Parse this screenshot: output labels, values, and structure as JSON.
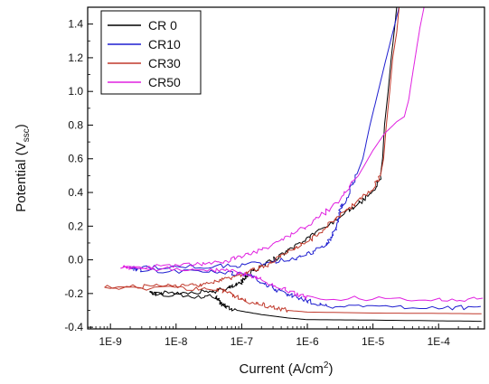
{
  "chart_data": {
    "type": "line",
    "xlabel": "Current (A/cm",
    "xlabel_sup": "2",
    "xlabel_suffix": ")",
    "ylabel": "Potential (V",
    "ylabel_sub": "ssc",
    "ylabel_suffix": ")",
    "x_scale": "log",
    "xlim": [
      4.5e-10,
      0.0005
    ],
    "ylim": [
      -0.41,
      1.5
    ],
    "x_ticks": [
      {
        "value": 1e-09,
        "label": "1E-9"
      },
      {
        "value": 1e-08,
        "label": "1E-8"
      },
      {
        "value": 1e-07,
        "label": "1E-7"
      },
      {
        "value": 1e-06,
        "label": "1E-6"
      },
      {
        "value": 1e-05,
        "label": "1E-5"
      },
      {
        "value": 0.0001,
        "label": "1E-4"
      }
    ],
    "y_ticks": [
      {
        "value": 1.4,
        "label": "1.4"
      },
      {
        "value": 1.2,
        "label": "1.2"
      },
      {
        "value": 1.0,
        "label": "1.0"
      },
      {
        "value": 0.8,
        "label": "0.8"
      },
      {
        "value": 0.6,
        "label": "0.6"
      },
      {
        "value": 0.4,
        "label": "0.4"
      },
      {
        "value": 0.2,
        "label": "0.2"
      },
      {
        "value": 0.0,
        "label": "0.0"
      },
      {
        "value": -0.2,
        "label": "-0.2"
      },
      {
        "value": -0.4,
        "label": "-0.4"
      }
    ],
    "legend_position": "top-left",
    "grid": false,
    "series": [
      {
        "name": "CR 0",
        "color": "#000000",
        "points": [
          [
            0.00045,
            -0.365
          ],
          [
            0.0001,
            -0.362
          ],
          [
            1e-05,
            -0.358
          ],
          [
            1e-06,
            -0.355
          ],
          [
            5e-07,
            -0.345
          ],
          [
            2e-07,
            -0.325
          ],
          [
            1e-07,
            -0.305
          ],
          [
            6e-08,
            -0.285
          ],
          [
            5e-08,
            -0.26
          ],
          [
            4.5e-08,
            -0.24
          ],
          [
            4e-08,
            -0.22
          ],
          [
            2e-08,
            -0.215
          ],
          [
            5e-09,
            -0.205
          ],
          [
            4e-09,
            -0.2
          ],
          [
            8e-09,
            -0.195
          ],
          [
            2e-08,
            -0.19
          ],
          [
            4e-08,
            -0.185
          ],
          [
            6e-08,
            -0.17
          ],
          [
            8e-08,
            -0.155
          ],
          [
            1e-07,
            -0.13
          ],
          [
            1.1e-07,
            -0.11
          ],
          [
            1.3e-07,
            -0.08
          ],
          [
            2e-07,
            -0.04
          ],
          [
            3e-07,
            0.0
          ],
          [
            5e-07,
            0.05
          ],
          [
            8e-07,
            0.1
          ],
          [
            1.2e-06,
            0.15
          ],
          [
            2e-06,
            0.2
          ],
          [
            3.5e-06,
            0.27
          ],
          [
            6e-06,
            0.33
          ],
          [
            1e-05,
            0.4
          ],
          [
            1.3e-05,
            0.5
          ],
          [
            1.4e-05,
            0.6
          ],
          [
            1.5e-05,
            0.8
          ],
          [
            1.7e-05,
            1.0
          ],
          [
            1.9e-05,
            1.2
          ],
          [
            2.1e-05,
            1.35
          ],
          [
            2.3e-05,
            1.5
          ]
        ]
      },
      {
        "name": "CR10",
        "color": "#1f1fd0",
        "points": [
          [
            0.00045,
            -0.285
          ],
          [
            0.0001,
            -0.283
          ],
          [
            1e-05,
            -0.281
          ],
          [
            2e-06,
            -0.275
          ],
          [
            1.2e-06,
            -0.255
          ],
          [
            8e-07,
            -0.23
          ],
          [
            5e-07,
            -0.205
          ],
          [
            3e-07,
            -0.17
          ],
          [
            2e-07,
            -0.13
          ],
          [
            1.5e-07,
            -0.1
          ],
          [
            1e-07,
            -0.085
          ],
          [
            6e-08,
            -0.078
          ],
          [
            2e-08,
            -0.07
          ],
          [
            3e-09,
            -0.06
          ],
          [
            2e-09,
            -0.05
          ],
          [
            4e-09,
            -0.045
          ],
          [
            2e-08,
            -0.04
          ],
          [
            8e-08,
            -0.035
          ],
          [
            2e-07,
            -0.02
          ],
          [
            5e-07,
            0.0
          ],
          [
            1e-06,
            0.03
          ],
          [
            1.8e-06,
            0.08
          ],
          [
            2.2e-06,
            0.12
          ],
          [
            2.8e-06,
            0.2
          ],
          [
            3.2e-06,
            0.3
          ],
          [
            3.8e-06,
            0.35
          ],
          [
            5e-06,
            0.45
          ],
          [
            7e-06,
            0.6
          ],
          [
            9e-06,
            0.8
          ],
          [
            1.2e-05,
            1.0
          ],
          [
            1.6e-05,
            1.2
          ],
          [
            2e-05,
            1.35
          ],
          [
            2.5e-05,
            1.5
          ]
        ]
      },
      {
        "name": "CR30",
        "color": "#c0392b",
        "points": [
          [
            0.00045,
            -0.32
          ],
          [
            0.0001,
            -0.318
          ],
          [
            1e-05,
            -0.316
          ],
          [
            1e-06,
            -0.31
          ],
          [
            5e-07,
            -0.3
          ],
          [
            3e-07,
            -0.285
          ],
          [
            2e-07,
            -0.265
          ],
          [
            1.2e-07,
            -0.245
          ],
          [
            8e-08,
            -0.215
          ],
          [
            6e-08,
            -0.19
          ],
          [
            4e-08,
            -0.175
          ],
          [
            1e-08,
            -0.17
          ],
          [
            8e-10,
            -0.165
          ],
          [
            3e-09,
            -0.16
          ],
          [
            1e-08,
            -0.155
          ],
          [
            2e-08,
            -0.15
          ],
          [
            4e-08,
            -0.13
          ],
          [
            6e-08,
            -0.11
          ],
          [
            1e-07,
            -0.09
          ],
          [
            1.5e-07,
            -0.06
          ],
          [
            2.5e-07,
            -0.03
          ],
          [
            4e-07,
            0.02
          ],
          [
            7e-07,
            0.07
          ],
          [
            1.2e-06,
            0.13
          ],
          [
            2e-06,
            0.2
          ],
          [
            3.5e-06,
            0.28
          ],
          [
            6e-06,
            0.35
          ],
          [
            1e-05,
            0.42
          ],
          [
            1.3e-05,
            0.5
          ],
          [
            1.45e-05,
            0.6
          ],
          [
            1.6e-05,
            0.8
          ],
          [
            1.8e-05,
            1.0
          ],
          [
            2e-05,
            1.2
          ],
          [
            2.3e-05,
            1.35
          ],
          [
            2.5e-05,
            1.5
          ]
        ]
      },
      {
        "name": "CR50",
        "color": "#e020e0",
        "points": [
          [
            0.00045,
            -0.235
          ],
          [
            0.0001,
            -0.233
          ],
          [
            1e-05,
            -0.231
          ],
          [
            1e-06,
            -0.225
          ],
          [
            7e-07,
            -0.205
          ],
          [
            4e-07,
            -0.17
          ],
          [
            2e-07,
            -0.12
          ],
          [
            1.2e-07,
            -0.09
          ],
          [
            8e-08,
            -0.07
          ],
          [
            4e-08,
            -0.06
          ],
          [
            1e-08,
            -0.055
          ],
          [
            2e-09,
            -0.05
          ],
          [
            1.5e-09,
            -0.045
          ],
          [
            5e-09,
            -0.04
          ],
          [
            2e-08,
            -0.03
          ],
          [
            5e-08,
            -0.015
          ],
          [
            1e-07,
            0.02
          ],
          [
            2e-07,
            0.06
          ],
          [
            4e-07,
            0.12
          ],
          [
            8e-07,
            0.18
          ],
          [
            1.5e-06,
            0.25
          ],
          [
            3e-06,
            0.35
          ],
          [
            6e-06,
            0.5
          ],
          [
            1e-05,
            0.65
          ],
          [
            1.5e-05,
            0.75
          ],
          [
            2.3e-05,
            0.82
          ],
          [
            3e-05,
            0.85
          ],
          [
            3.5e-05,
            0.95
          ],
          [
            4e-05,
            1.1
          ],
          [
            4.6e-05,
            1.25
          ],
          [
            5.2e-05,
            1.38
          ],
          [
            6e-05,
            1.5
          ],
          [
            8e-05,
            1.5
          ]
        ]
      }
    ]
  }
}
